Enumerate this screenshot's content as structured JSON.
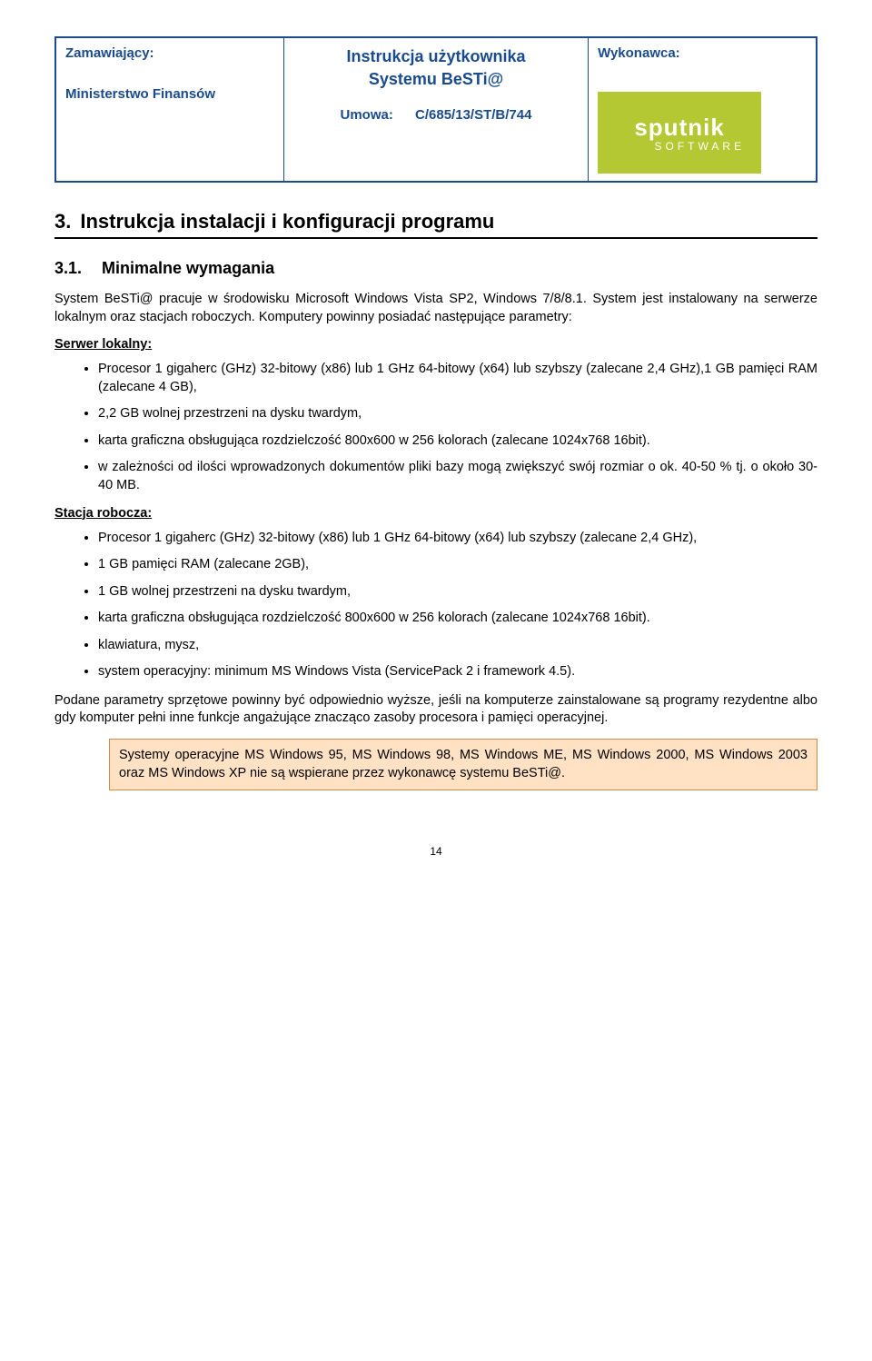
{
  "header": {
    "left_label": "Zamawiający:",
    "left_sub": "Ministerstwo Finansów",
    "mid_title1": "Instrukcja użytkownika",
    "mid_title2": "Systemu BeSTi@",
    "mid_umowa_label": "Umowa:",
    "mid_umowa_num": "C/685/13/ST/B/744",
    "right_label": "Wykonawca:",
    "logo_main": "sputnik",
    "logo_sub": "SOFTWARE",
    "logo_bg": "#b3c833",
    "border_color": "#1a4b8c"
  },
  "h1": {
    "num": "3.",
    "text": "Instrukcja instalacji i konfiguracji programu"
  },
  "h2": {
    "num": "3.1.",
    "text": "Minimalne wymagania"
  },
  "intro": "System BeSTi@ pracuje w środowisku Microsoft Windows Vista SP2, Windows 7/8/8.1. System jest instalowany na serwerze lokalnym oraz stacjach roboczych. Komputery powinny posiadać następujące parametry:",
  "server": {
    "label": "Serwer lokalny:",
    "items": [
      "Procesor 1 gigaherc (GHz) 32-bitowy (x86) lub 1 GHz 64-bitowy (x64) lub szybszy (zalecane 2,4 GHz),1 GB pamięci RAM (zalecane 4 GB),",
      "2,2 GB wolnej przestrzeni na dysku twardym,",
      "karta graficzna obsługująca rozdzielczość 800x600 w 256 kolorach (zalecane 1024x768 16bit).",
      "w zależności od ilości wprowadzonych dokumentów pliki bazy mogą zwiększyć swój rozmiar o ok. 40-50 % tj. o około 30-40 MB."
    ]
  },
  "workstation": {
    "label": "Stacja robocza:",
    "items": [
      "Procesor 1 gigaherc (GHz) 32-bitowy (x86) lub 1 GHz 64-bitowy (x64) lub szybszy (zalecane 2,4 GHz),",
      "1 GB pamięci RAM (zalecane 2GB),",
      "1 GB wolnej przestrzeni na dysku twardym,",
      "karta graficzna obsługująca rozdzielczość 800x600 w 256 kolorach (zalecane 1024x768 16bit).",
      "klawiatura, mysz,",
      "system operacyjny: minimum MS Windows Vista (ServicePack 2 i framework 4.5)."
    ]
  },
  "closing": "Podane parametry sprzętowe powinny być odpowiednio wyższe, jeśli na komputerze zainstalowane są programy rezydentne albo gdy komputer pełni inne funkcje angażujące znacząco zasoby procesora i pamięci operacyjnej.",
  "note": "Systemy operacyjne MS Windows 95, MS Windows 98, MS Windows ME, MS Windows 2000, MS Windows 2003 oraz MS Windows XP nie są wspierane przez wykonawcę systemu BeSTi@.",
  "note_bg": "#ffe1c4",
  "note_border": "#d08a4a",
  "page_number": "14"
}
